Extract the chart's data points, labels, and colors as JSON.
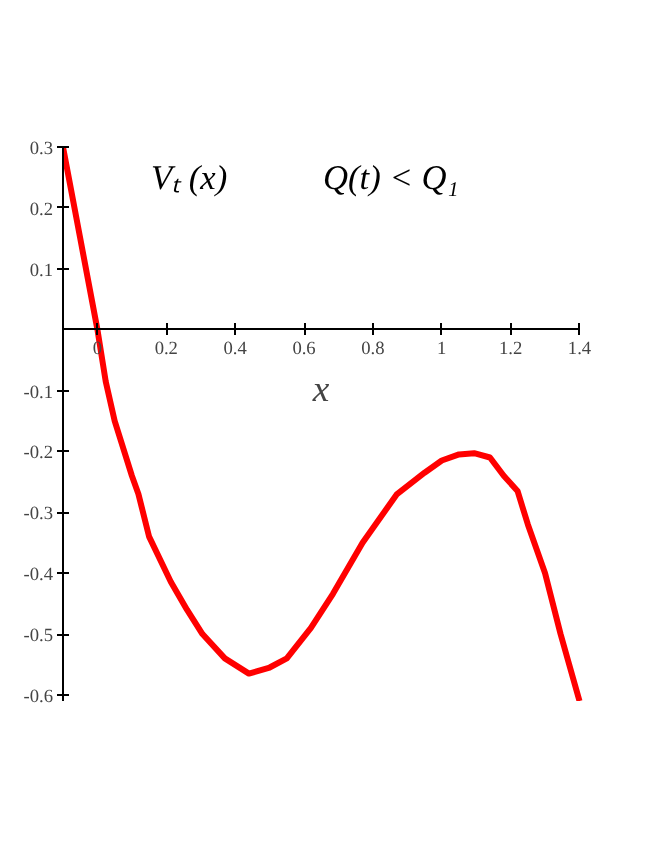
{
  "chart_data": {
    "type": "line",
    "xlabel": "x",
    "annotations": [
      "Vₜ (x)",
      "Q(t) < Q₁"
    ],
    "x": [
      -0.1,
      -0.05,
      0,
      0.024,
      0.05,
      0.1,
      0.119,
      0.15,
      0.213,
      0.26,
      0.305,
      0.37,
      0.44,
      0.5,
      0.55,
      0.62,
      0.684,
      0.77,
      0.87,
      0.95,
      1.0,
      1.05,
      1.094,
      1.14,
      1.18,
      1.22,
      1.25,
      1.3,
      1.345,
      1.37,
      1.4
    ],
    "series": [
      {
        "color": "#ff0000",
        "values": [
          0.3,
          0.15,
          0.0,
          -0.085,
          -0.15,
          -0.24,
          -0.27,
          -0.34,
          -0.414,
          -0.46,
          -0.5,
          -0.54,
          -0.565,
          -0.555,
          -0.54,
          -0.49,
          -0.434,
          -0.35,
          -0.27,
          -0.235,
          -0.215,
          -0.205,
          -0.203,
          -0.21,
          -0.24,
          -0.265,
          -0.32,
          -0.4,
          -0.5,
          -0.55,
          -0.61
        ]
      }
    ],
    "xlim": [
      -0.1,
      1.4
    ],
    "ylim": [
      -0.61,
      0.3
    ],
    "xticks": [
      {
        "value": 0,
        "label": "0"
      },
      0.2,
      0.4,
      0.6,
      0.8,
      {
        "value": 1,
        "label": "1"
      },
      1.2,
      1.4
    ],
    "yticks": [
      -0.6,
      -0.5,
      -0.4,
      -0.3,
      -0.2,
      -0.1,
      0.1,
      0.2,
      0.3
    ],
    "grid": false,
    "marker": "none",
    "line_style": "solid"
  }
}
